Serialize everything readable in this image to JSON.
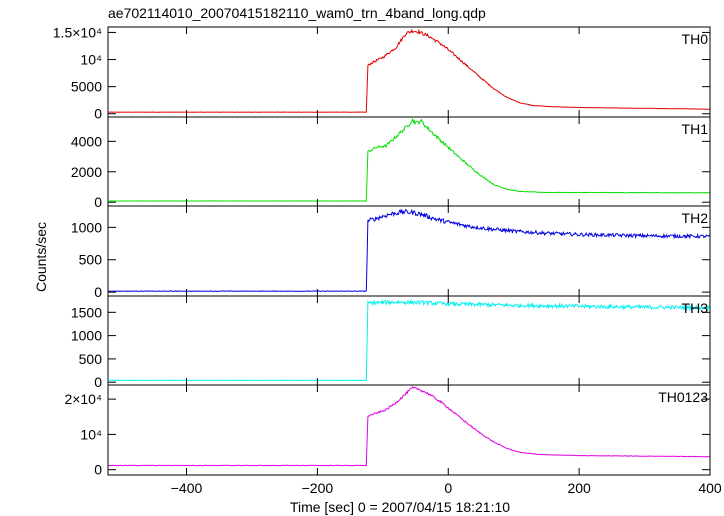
{
  "title": "ae702114010_20070415182110_wam0_trn_4band_long.qdp",
  "xlabel": "Time [sec] 0 = 2007/04/15 18:21:10",
  "ylabel": "Counts/sec",
  "chart_data": {
    "type": "line",
    "title": "ae702114010_20070415182110_wam0_trn_4band_long.qdp",
    "xlabel": "Time [sec] 0 = 2007/04/15 18:21:10",
    "ylabel": "Counts/sec",
    "xlim": [
      -520,
      400
    ],
    "x_ticks": [
      -400,
      -200,
      0,
      200,
      400
    ],
    "x_tick_labels": [
      "−400",
      "−200",
      "0",
      "200",
      "400"
    ],
    "grid": false,
    "panels": [
      {
        "name": "TH0",
        "color": "#e00000",
        "ylim": [
          -600,
          16000
        ],
        "y_ticks": [
          0,
          5000,
          10000,
          15000
        ],
        "y_tick_labels": [
          "0",
          "5000",
          "10⁴",
          "1.5×10⁴"
        ],
        "points": [
          [
            -520,
            300
          ],
          [
            -125,
            300
          ],
          [
            -123,
            8900
          ],
          [
            -115,
            9500
          ],
          [
            -100,
            10400
          ],
          [
            -80,
            12200
          ],
          [
            -65,
            14800
          ],
          [
            -55,
            15300
          ],
          [
            -45,
            15100
          ],
          [
            -30,
            14300
          ],
          [
            -10,
            12800
          ],
          [
            10,
            10800
          ],
          [
            30,
            8700
          ],
          [
            50,
            6600
          ],
          [
            70,
            4600
          ],
          [
            90,
            3000
          ],
          [
            110,
            2000
          ],
          [
            130,
            1500
          ],
          [
            160,
            1300
          ],
          [
            200,
            1150
          ],
          [
            400,
            850
          ]
        ],
        "noise": 0.02
      },
      {
        "name": "TH1",
        "color": "#00e000",
        "ylim": [
          -250,
          5600
        ],
        "y_ticks": [
          0,
          2000,
          4000
        ],
        "y_tick_labels": [
          "0",
          "2000",
          "4000"
        ],
        "points": [
          [
            -520,
            80
          ],
          [
            -125,
            80
          ],
          [
            -123,
            3300
          ],
          [
            -110,
            3600
          ],
          [
            -95,
            3700
          ],
          [
            -80,
            4300
          ],
          [
            -65,
            4900
          ],
          [
            -55,
            5400
          ],
          [
            -48,
            5200
          ],
          [
            -42,
            5350
          ],
          [
            -30,
            4800
          ],
          [
            -10,
            4000
          ],
          [
            10,
            3200
          ],
          [
            30,
            2450
          ],
          [
            50,
            1750
          ],
          [
            70,
            1150
          ],
          [
            90,
            850
          ],
          [
            110,
            700
          ],
          [
            150,
            640
          ],
          [
            400,
            620
          ]
        ],
        "noise": 0.025
      },
      {
        "name": "TH2",
        "color": "#0000e0",
        "ylim": [
          -60,
          1330
        ],
        "y_ticks": [
          0,
          500,
          1000
        ],
        "y_tick_labels": [
          "0",
          "500",
          "1000"
        ],
        "points": [
          [
            -520,
            15
          ],
          [
            -125,
            15
          ],
          [
            -123,
            1100
          ],
          [
            -110,
            1140
          ],
          [
            -90,
            1200
          ],
          [
            -70,
            1240
          ],
          [
            -55,
            1230
          ],
          [
            -40,
            1200
          ],
          [
            -20,
            1130
          ],
          [
            0,
            1080
          ],
          [
            30,
            1020
          ],
          [
            60,
            980
          ],
          [
            100,
            940
          ],
          [
            150,
            910
          ],
          [
            200,
            890
          ],
          [
            300,
            870
          ],
          [
            400,
            860
          ]
        ],
        "noise": 0.03
      },
      {
        "name": "TH3",
        "color": "#00f0f0",
        "ylim": [
          -60,
          1850
        ],
        "y_ticks": [
          0,
          500,
          1000,
          1500
        ],
        "y_tick_labels": [
          "0",
          "500",
          "1000",
          "1500"
        ],
        "points": [
          [
            -520,
            40
          ],
          [
            -125,
            40
          ],
          [
            -123,
            1700
          ],
          [
            -80,
            1720
          ],
          [
            -40,
            1710
          ],
          [
            0,
            1680
          ],
          [
            100,
            1650
          ],
          [
            200,
            1630
          ],
          [
            300,
            1610
          ],
          [
            400,
            1600
          ]
        ],
        "noise": 0.025
      },
      {
        "name": "TH0123",
        "color": "#e000e0",
        "ylim": [
          -1500,
          24000
        ],
        "y_ticks": [
          0,
          10000,
          20000
        ],
        "y_tick_labels": [
          "0",
          "10⁴",
          "2×10⁴"
        ],
        "points": [
          [
            -520,
            1200
          ],
          [
            -125,
            1200
          ],
          [
            -123,
            15200
          ],
          [
            -110,
            16000
          ],
          [
            -95,
            17000
          ],
          [
            -80,
            19000
          ],
          [
            -65,
            21500
          ],
          [
            -55,
            23200
          ],
          [
            -45,
            22800
          ],
          [
            -30,
            21500
          ],
          [
            -10,
            19000
          ],
          [
            10,
            16000
          ],
          [
            30,
            13000
          ],
          [
            50,
            10200
          ],
          [
            70,
            7800
          ],
          [
            90,
            6000
          ],
          [
            110,
            4900
          ],
          [
            140,
            4300
          ],
          [
            200,
            4000
          ],
          [
            400,
            3700
          ]
        ],
        "noise": 0.015
      }
    ]
  }
}
